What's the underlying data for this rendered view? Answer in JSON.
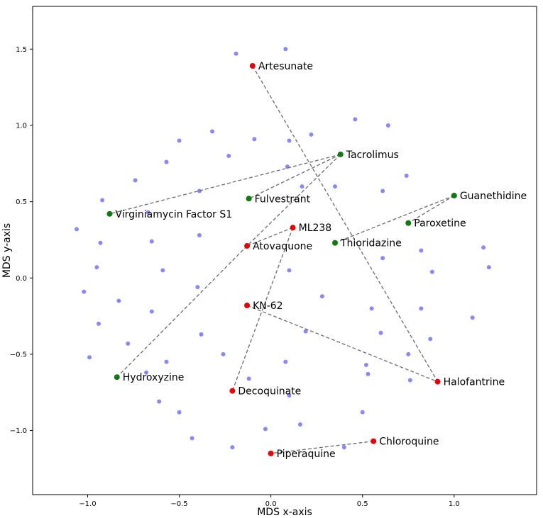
{
  "chart_data": {
    "type": "scatter",
    "title": "",
    "xlabel": "MDS x-axis",
    "ylabel": "MDS y-axis",
    "xlim": [
      -1.3,
      1.45
    ],
    "ylim": [
      -1.42,
      1.78
    ],
    "xticks": [
      -1.0,
      -0.5,
      0.0,
      0.5,
      1.0
    ],
    "xtick_labels": [
      "−1.0",
      "−0.5",
      "0.0",
      "0.5",
      "1.0"
    ],
    "yticks": [
      -1.0,
      -0.5,
      0.0,
      0.5,
      1.0,
      1.5
    ],
    "ytick_labels": [
      "−1.0",
      "−0.5",
      "0.0",
      "0.5",
      "1.0",
      "1.5"
    ],
    "grid": false,
    "colors": {
      "background": "#blue",
      "red": "#e8000b",
      "green": "#107a10",
      "blue": "#6a6af5",
      "connector": "#6b6b6b"
    },
    "background_points": [
      [
        0.08,
        1.5
      ],
      [
        -0.19,
        1.47
      ],
      [
        -0.32,
        0.96
      ],
      [
        -0.5,
        0.9
      ],
      [
        -0.09,
        0.91
      ],
      [
        0.1,
        0.9
      ],
      [
        0.22,
        0.94
      ],
      [
        0.46,
        1.04
      ],
      [
        0.64,
        1.0
      ],
      [
        -0.23,
        0.8
      ],
      [
        -0.57,
        0.76
      ],
      [
        -0.74,
        0.64
      ],
      [
        0.09,
        0.73
      ],
      [
        0.74,
        0.67
      ],
      [
        -0.92,
        0.51
      ],
      [
        -0.39,
        0.57
      ],
      [
        0.17,
        0.6
      ],
      [
        0.35,
        0.6
      ],
      [
        0.61,
        0.57
      ],
      [
        -0.67,
        0.43
      ],
      [
        -1.06,
        0.32
      ],
      [
        -0.39,
        0.28
      ],
      [
        -0.65,
        0.24
      ],
      [
        -0.93,
        0.23
      ],
      [
        0.82,
        0.18
      ],
      [
        1.16,
        0.2
      ],
      [
        -0.95,
        0.07
      ],
      [
        0.1,
        0.05
      ],
      [
        0.61,
        0.13
      ],
      [
        0.88,
        0.04
      ],
      [
        1.19,
        0.07
      ],
      [
        -0.59,
        0.05
      ],
      [
        -1.02,
        -0.09
      ],
      [
        -0.4,
        -0.06
      ],
      [
        0.28,
        -0.12
      ],
      [
        -0.83,
        -0.15
      ],
      [
        -0.65,
        -0.22
      ],
      [
        0.55,
        -0.2
      ],
      [
        0.82,
        -0.2
      ],
      [
        1.1,
        -0.26
      ],
      [
        -0.94,
        -0.3
      ],
      [
        0.19,
        -0.35
      ],
      [
        0.6,
        -0.36
      ],
      [
        -0.38,
        -0.37
      ],
      [
        -0.78,
        -0.43
      ],
      [
        0.87,
        -0.4
      ],
      [
        -0.99,
        -0.52
      ],
      [
        -0.26,
        -0.5
      ],
      [
        -0.57,
        -0.55
      ],
      [
        0.08,
        -0.55
      ],
      [
        0.52,
        -0.57
      ],
      [
        0.75,
        -0.5
      ],
      [
        -0.68,
        -0.62
      ],
      [
        0.53,
        -0.63
      ],
      [
        -0.12,
        -0.66
      ],
      [
        0.1,
        -0.77
      ],
      [
        0.76,
        -0.67
      ],
      [
        -0.61,
        -0.81
      ],
      [
        -0.5,
        -0.88
      ],
      [
        0.5,
        -0.88
      ],
      [
        -0.03,
        -0.99
      ],
      [
        0.16,
        -0.96
      ],
      [
        -0.43,
        -1.05
      ],
      [
        0.4,
        -1.11
      ],
      [
        -0.21,
        -1.11
      ]
    ],
    "labeled_points": [
      {
        "name": "Artesunate",
        "x": -0.1,
        "y": 1.39,
        "group": "red"
      },
      {
        "name": "Tacrolimus",
        "x": 0.38,
        "y": 0.81,
        "group": "green"
      },
      {
        "name": "Guanethidine",
        "x": 1.0,
        "y": 0.54,
        "group": "green"
      },
      {
        "name": "Fulvestrant",
        "x": -0.12,
        "y": 0.52,
        "group": "green"
      },
      {
        "name": "Virginiamycin Factor S1",
        "x": -0.88,
        "y": 0.42,
        "group": "green"
      },
      {
        "name": "Paroxetine",
        "x": 0.75,
        "y": 0.36,
        "group": "green"
      },
      {
        "name": "ML238",
        "x": 0.12,
        "y": 0.33,
        "group": "red"
      },
      {
        "name": "Thioridazine",
        "x": 0.35,
        "y": 0.23,
        "group": "green"
      },
      {
        "name": "Atovaquone",
        "x": -0.13,
        "y": 0.21,
        "group": "red"
      },
      {
        "name": "KN-62",
        "x": -0.13,
        "y": -0.18,
        "group": "red"
      },
      {
        "name": "Hydroxyzine",
        "x": -0.84,
        "y": -0.65,
        "group": "green"
      },
      {
        "name": "Halofantrine",
        "x": 0.91,
        "y": -0.68,
        "group": "red"
      },
      {
        "name": "Decoquinate",
        "x": -0.21,
        "y": -0.74,
        "group": "red"
      },
      {
        "name": "Chloroquine",
        "x": 0.56,
        "y": -1.07,
        "group": "red"
      },
      {
        "name": "Piperaquine",
        "x": 0.0,
        "y": -1.15,
        "group": "red"
      }
    ],
    "connections": [
      [
        "Artesunate",
        "Halofantrine"
      ],
      [
        "Tacrolimus",
        "Virginiamycin Factor S1"
      ],
      [
        "Tacrolimus",
        "Fulvestrant"
      ],
      [
        "Tacrolimus",
        "Atovaquone"
      ],
      [
        "Guanethidine",
        "Paroxetine"
      ],
      [
        "Guanethidine",
        "Thioridazine"
      ],
      [
        "ML238",
        "Atovaquone"
      ],
      [
        "ML238",
        "Decoquinate"
      ],
      [
        "Atovaquone",
        "Hydroxyzine"
      ],
      [
        "KN-62",
        "Halofantrine"
      ],
      [
        "Chloroquine",
        "Piperaquine"
      ]
    ]
  }
}
